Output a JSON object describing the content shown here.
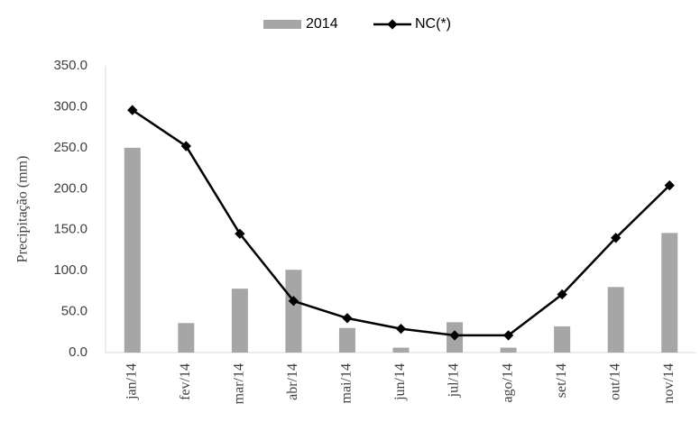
{
  "chart_data": {
    "type": "bar-line",
    "y_axis_label": "Precipitação (mm)",
    "categories": [
      "jan/14",
      "fev/14",
      "mar/14",
      "abr/14",
      "mai/14",
      "jun/14",
      "jul/14",
      "ago/14",
      "set/14",
      "out/14",
      "nov/14"
    ],
    "series": [
      {
        "name": "2014",
        "color": "#a6a6a6",
        "kind": "bar",
        "values": [
          250,
          36,
          78,
          101,
          30,
          6,
          37,
          6,
          32,
          80,
          146
        ]
      },
      {
        "name": "NC(*)",
        "color": "#000000",
        "kind": "line",
        "values": [
          296,
          252,
          145,
          63,
          42,
          29,
          21,
          21,
          71,
          140,
          204
        ]
      }
    ],
    "ylim": [
      0,
      350
    ],
    "yticks": [
      {
        "value": 0,
        "label": "0.0"
      },
      {
        "value": 50,
        "label": "50.0"
      },
      {
        "value": 100,
        "label": "100.0"
      },
      {
        "value": 150,
        "label": "150.0"
      },
      {
        "value": 200,
        "label": "200.0"
      },
      {
        "value": 250,
        "label": "250.0"
      },
      {
        "value": 300,
        "label": "300.0"
      },
      {
        "value": 350,
        "label": "350.0"
      }
    ],
    "grid": false
  }
}
